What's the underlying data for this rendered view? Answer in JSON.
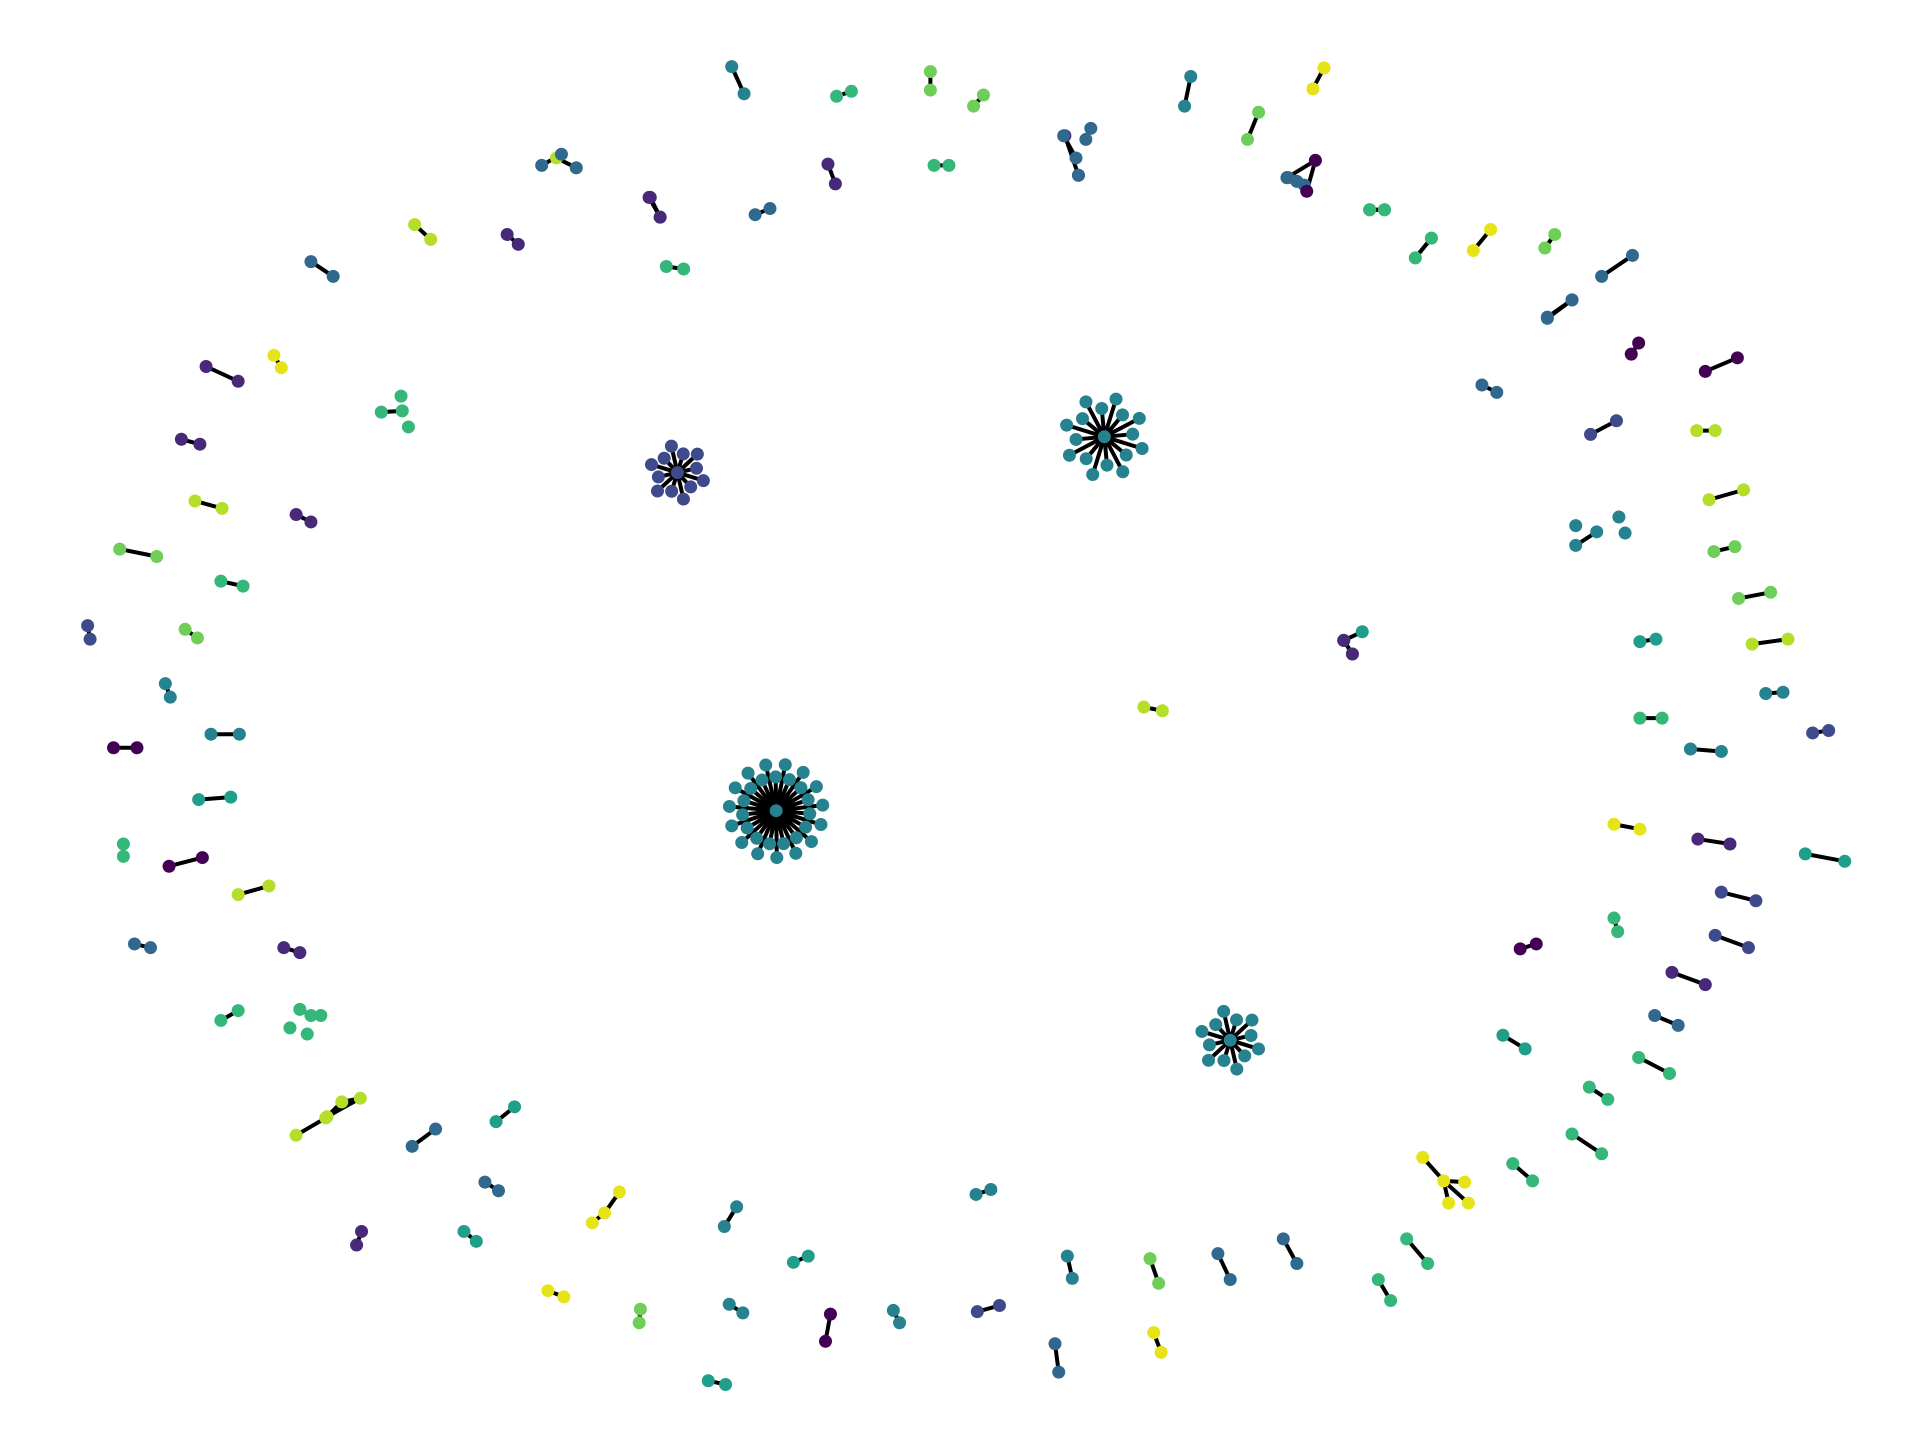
{
  "palette": {
    "p0": "#440154",
    "p1": "#482878",
    "p2": "#3e4a89",
    "p3": "#31688e",
    "p4": "#26828e",
    "p5": "#1f9e89",
    "p6": "#35b779",
    "p7": "#6ece58",
    "p8": "#b5de2b",
    "p9": "#e6e419",
    "edge": "#000000",
    "background": "#ffffff"
  },
  "components": [
    {
      "kind": "hub",
      "color": "p2",
      "leaves": 12
    },
    {
      "kind": "hub",
      "color": "p4",
      "leaves": 16
    },
    {
      "kind": "hub",
      "color": "p4",
      "leaves": 30
    },
    {
      "kind": "hub",
      "color": "p4",
      "leaves": 12
    },
    {
      "kind": "pair",
      "color": "p4"
    },
    {
      "kind": "pair",
      "color": "p6"
    },
    {
      "kind": "pair",
      "color": "p7"
    },
    {
      "kind": "pair",
      "color": "p7"
    },
    {
      "kind": "pair",
      "color": "p1"
    },
    {
      "kind": "pair",
      "color": "p4"
    },
    {
      "kind": "pair",
      "color": "p7"
    },
    {
      "kind": "pair",
      "color": "p9"
    },
    {
      "kind": "pair",
      "color": "p8"
    },
    {
      "kind": "pair",
      "color": "p3"
    },
    {
      "kind": "pair",
      "color": "p1"
    },
    {
      "kind": "pair",
      "color": "p6"
    },
    {
      "kind": "pair",
      "color": "p5"
    },
    {
      "kind": "pair",
      "color": "p8"
    },
    {
      "kind": "pair",
      "color": "p3"
    },
    {
      "kind": "pair",
      "color": "p1"
    },
    {
      "kind": "pair",
      "color": "p8"
    },
    {
      "kind": "pair",
      "color": "p1"
    },
    {
      "kind": "pair",
      "color": "p6"
    },
    {
      "kind": "pair",
      "color": "p3"
    },
    {
      "kind": "pair",
      "color": "p1"
    },
    {
      "kind": "pair",
      "color": "p9"
    },
    {
      "kind": "pair",
      "color": "p1"
    },
    {
      "kind": "pair",
      "color": "p1"
    },
    {
      "kind": "pair",
      "color": "p8"
    },
    {
      "kind": "pair",
      "color": "p0"
    },
    {
      "kind": "pair",
      "color": "p7"
    },
    {
      "kind": "pair",
      "color": "p6"
    },
    {
      "kind": "pair",
      "color": "p2"
    },
    {
      "kind": "pair",
      "color": "p7"
    },
    {
      "kind": "pair",
      "color": "p4"
    },
    {
      "kind": "pair",
      "color": "p4"
    },
    {
      "kind": "pair",
      "color": "p0"
    },
    {
      "kind": "pair",
      "color": "p5"
    },
    {
      "kind": "pair",
      "color": "p6"
    },
    {
      "kind": "pair",
      "color": "p1"
    },
    {
      "kind": "pair",
      "color": "p8"
    },
    {
      "kind": "pair",
      "color": "p3"
    },
    {
      "kind": "pair",
      "color": "p1"
    },
    {
      "kind": "pair",
      "color": "p6"
    },
    {
      "kind": "chain",
      "color": "p8",
      "nodes": 5
    },
    {
      "kind": "pair",
      "color": "p3"
    },
    {
      "kind": "pair",
      "color": "p5"
    },
    {
      "kind": "pair",
      "color": "p3"
    },
    {
      "kind": "pair",
      "color": "p1"
    },
    {
      "kind": "pair",
      "color": "p5"
    },
    {
      "kind": "chain",
      "color": "p9",
      "nodes": 3
    },
    {
      "kind": "pair",
      "color": "p9"
    },
    {
      "kind": "pair",
      "color": "p7"
    },
    {
      "kind": "pair",
      "color": "p5"
    },
    {
      "kind": "pair",
      "color": "p4"
    },
    {
      "kind": "pair",
      "color": "p5"
    },
    {
      "kind": "pair",
      "color": "p4"
    },
    {
      "kind": "pair",
      "color": "p0"
    },
    {
      "kind": "pair",
      "color": "p2"
    },
    {
      "kind": "pair",
      "color": "p4"
    },
    {
      "kind": "pair",
      "color": "p4"
    },
    {
      "kind": "pair",
      "color": "p3"
    },
    {
      "kind": "pair",
      "color": "p4"
    },
    {
      "kind": "pair",
      "color": "p7"
    },
    {
      "kind": "pair",
      "color": "p9"
    },
    {
      "kind": "pair",
      "color": "p3"
    },
    {
      "kind": "pair",
      "color": "p3"
    },
    {
      "kind": "pair",
      "color": "p6"
    },
    {
      "kind": "pair",
      "color": "p6"
    },
    {
      "kind": "pair",
      "color": "p6"
    },
    {
      "kind": "star",
      "color": "p9",
      "nodes": 4
    },
    {
      "kind": "pair",
      "color": "p6"
    },
    {
      "kind": "pair",
      "color": "p6"
    },
    {
      "kind": "pair",
      "color": "p6"
    },
    {
      "kind": "pair",
      "color": "p5"
    },
    {
      "kind": "pair",
      "color": "p3"
    },
    {
      "kind": "pair",
      "color": "p6"
    },
    {
      "kind": "pair",
      "color": "p6"
    },
    {
      "kind": "pair",
      "color": "p1"
    },
    {
      "kind": "pair",
      "color": "p2"
    },
    {
      "kind": "pair",
      "color": "p2"
    },
    {
      "kind": "pair",
      "color": "p0"
    },
    {
      "kind": "pair",
      "color": "p1"
    },
    {
      "kind": "pair",
      "color": "p5"
    },
    {
      "kind": "pair",
      "color": "p9"
    },
    {
      "kind": "pair",
      "color": "p8"
    },
    {
      "kind": "pair",
      "color": "p5"
    },
    {
      "kind": "pair",
      "color": "p4"
    },
    {
      "kind": "pair",
      "color": "p2"
    },
    {
      "kind": "pair",
      "color": "p4"
    },
    {
      "kind": "pair",
      "color": "p7"
    },
    {
      "kind": "pair",
      "color": "p7"
    },
    {
      "kind": "pair",
      "color": "p4"
    },
    {
      "kind": "pair",
      "color": "p8"
    },
    {
      "kind": "star",
      "color": "p0",
      "nodes": 5
    },
    {
      "kind": "pair",
      "color": "p2"
    },
    {
      "kind": "pair",
      "color": "p3"
    },
    {
      "kind": "pair",
      "color": "p0"
    },
    {
      "kind": "pair",
      "color": "p8"
    },
    {
      "kind": "pair",
      "color": "p4"
    },
    {
      "kind": "pair",
      "color": "p3"
    },
    {
      "kind": "pair",
      "color": "p7"
    },
    {
      "kind": "pair",
      "color": "p9"
    },
    {
      "kind": "pair",
      "color": "p6"
    },
    {
      "kind": "pair",
      "color": "p6"
    },
    {
      "kind": "pair",
      "color": "p3"
    },
    {
      "kind": "pair",
      "color": "p6"
    },
    {
      "kind": "pair",
      "color": "p5"
    },
    {
      "kind": "pair",
      "color": "p8"
    },
    {
      "kind": "pair",
      "color": "p3"
    },
    {
      "kind": "pair",
      "color": "p1"
    },
    {
      "kind": "pair",
      "color": "p3"
    },
    {
      "kind": "star",
      "color": "p0",
      "nodes": 5
    },
    {
      "kind": "pair",
      "color": "p3"
    },
    {
      "kind": "pair",
      "color": "p6"
    },
    {
      "kind": "pair",
      "color": "p6"
    },
    {
      "kind": "pair",
      "color": "p3"
    },
    {
      "kind": "star",
      "color": "p4",
      "nodes": 4
    },
    {
      "kind": "star",
      "color": "p5",
      "nodes": 4
    },
    {
      "kind": "star",
      "color": "p6",
      "nodes": 3
    }
  ]
}
